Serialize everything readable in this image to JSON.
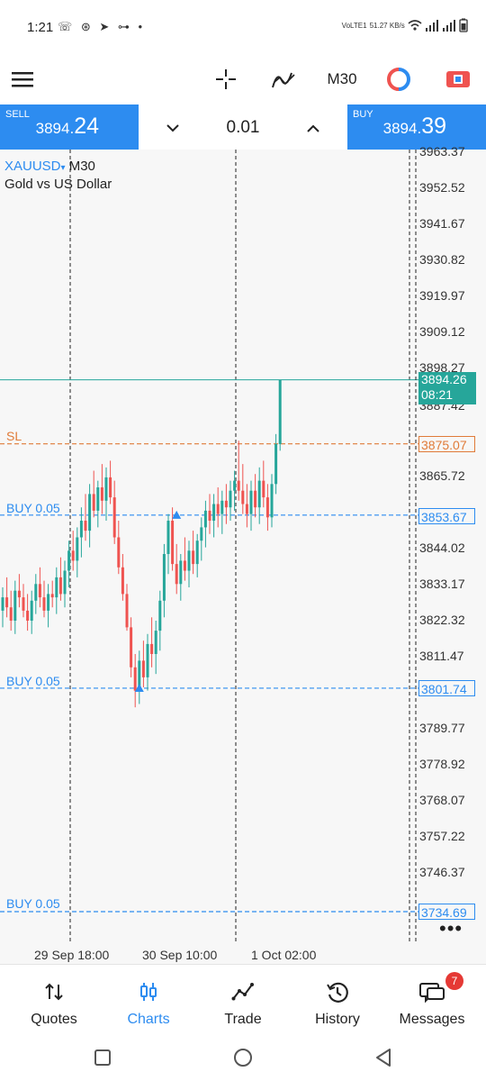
{
  "status": {
    "time": "1:21",
    "icons": "☏ ⊛ ➤ ⊶ •",
    "net_speed": "51.27 KB/s",
    "net_type": "VoLTE1"
  },
  "toolbar": {
    "timeframe": "M30",
    "icons": [
      "menu-icon",
      "crosshair-icon",
      "indicators-icon",
      "trade-circle-icon",
      "one-click-trading-icon"
    ]
  },
  "trade": {
    "sell_label": "SELL",
    "sell_price_main": "3894.",
    "sell_price_big": "24",
    "volume": "0.01",
    "buy_label": "BUY",
    "buy_price_main": "3894.",
    "buy_price_big": "39"
  },
  "chart": {
    "symbol": "XAUUSD",
    "symbol_marker": "▾",
    "timeframe": "M30",
    "description": "Gold vs US Dollar",
    "y_labels": [
      "3963.37",
      "3952.52",
      "3941.67",
      "3930.82",
      "3919.97",
      "3909.12",
      "3898.27",
      "3887.42",
      "3865.72",
      "3844.02",
      "3833.17",
      "3822.32",
      "3811.47",
      "3789.77",
      "3778.92",
      "3768.07",
      "3757.22",
      "3746.37"
    ],
    "x_labels": [
      "29 Sep 18:00",
      "30 Sep 10:00",
      "1 Oct 02:00"
    ],
    "current_price": "3894.26",
    "countdown": "08:21",
    "levels": [
      {
        "label": "SL",
        "price": "3875.07",
        "color": "#e07b39"
      },
      {
        "label": "BUY 0.05",
        "price": "3853.67",
        "color": "#2d8cf0"
      },
      {
        "label": "BUY 0.05",
        "price": "3801.74",
        "color": "#2d8cf0"
      },
      {
        "label": "BUY 0.05",
        "price": "3734.69",
        "color": "#2d8cf0"
      }
    ],
    "colors": {
      "bull": "#26a69a",
      "bear": "#ef5350",
      "buy_line": "#2d8cf0",
      "sl_line": "#e07b39"
    },
    "more": "•••"
  },
  "tabs": [
    {
      "label": "Quotes",
      "icon": "quotes-icon"
    },
    {
      "label": "Charts",
      "icon": "charts-icon",
      "active": true
    },
    {
      "label": "Trade",
      "icon": "trade-icon"
    },
    {
      "label": "History",
      "icon": "history-icon"
    },
    {
      "label": "Messages",
      "icon": "messages-icon",
      "badge": "7"
    }
  ],
  "chart_data": {
    "type": "candlestick",
    "title": "",
    "ylim": [
      3734.69,
      3963.37
    ],
    "x_labels": [
      "29 Sep 18:00",
      "30 Sep 10:00",
      "1 Oct 02:00"
    ],
    "series": [
      {
        "name": "XAUUSD",
        "candles": [
          [
            3825,
            3832,
            3820,
            3829
          ],
          [
            3829,
            3835,
            3823,
            3826
          ],
          [
            3826,
            3831,
            3819,
            3822
          ],
          [
            3822,
            3834,
            3818,
            3831
          ],
          [
            3831,
            3836,
            3826,
            3829
          ],
          [
            3829,
            3833,
            3823,
            3825
          ],
          [
            3825,
            3830,
            3819,
            3822
          ],
          [
            3822,
            3831,
            3818,
            3828
          ],
          [
            3828,
            3836,
            3824,
            3833
          ],
          [
            3833,
            3838,
            3826,
            3829
          ],
          [
            3829,
            3834,
            3823,
            3825
          ],
          [
            3825,
            3833,
            3820,
            3830
          ],
          [
            3830,
            3834,
            3826,
            3829
          ],
          [
            3829,
            3838,
            3824,
            3835
          ],
          [
            3835,
            3841,
            3828,
            3830
          ],
          [
            3830,
            3840,
            3826,
            3837
          ],
          [
            3837,
            3846,
            3832,
            3843
          ],
          [
            3843,
            3849,
            3837,
            3840
          ],
          [
            3840,
            3850,
            3835,
            3847
          ],
          [
            3847,
            3856,
            3841,
            3852
          ],
          [
            3852,
            3860,
            3846,
            3849
          ],
          [
            3849,
            3863,
            3844,
            3860
          ],
          [
            3860,
            3867,
            3853,
            3855
          ],
          [
            3855,
            3864,
            3850,
            3862
          ],
          [
            3862,
            3869,
            3854,
            3858
          ],
          [
            3858,
            3868,
            3852,
            3865
          ],
          [
            3865,
            3870,
            3857,
            3859
          ],
          [
            3859,
            3864,
            3845,
            3847
          ],
          [
            3847,
            3852,
            3836,
            3838
          ],
          [
            3838,
            3842,
            3828,
            3830
          ],
          [
            3830,
            3833,
            3819,
            3820
          ],
          [
            3820,
            3823,
            3805,
            3808
          ],
          [
            3808,
            3812,
            3796,
            3801
          ],
          [
            3801,
            3813,
            3797,
            3810
          ],
          [
            3810,
            3816,
            3802,
            3805
          ],
          [
            3805,
            3818,
            3801,
            3815
          ],
          [
            3815,
            3823,
            3808,
            3812
          ],
          [
            3812,
            3822,
            3806,
            3819
          ],
          [
            3819,
            3831,
            3813,
            3828
          ],
          [
            3828,
            3845,
            3823,
            3842
          ],
          [
            3842,
            3854,
            3836,
            3852
          ],
          [
            3852,
            3856,
            3837,
            3839
          ],
          [
            3839,
            3845,
            3830,
            3833
          ],
          [
            3833,
            3842,
            3828,
            3840
          ],
          [
            3840,
            3847,
            3834,
            3837
          ],
          [
            3837,
            3846,
            3832,
            3843
          ],
          [
            3843,
            3849,
            3836,
            3839
          ],
          [
            3839,
            3848,
            3835,
            3846
          ],
          [
            3846,
            3853,
            3840,
            3850
          ],
          [
            3850,
            3858,
            3844,
            3855
          ],
          [
            3855,
            3860,
            3848,
            3852
          ],
          [
            3852,
            3860,
            3847,
            3857
          ],
          [
            3857,
            3862,
            3850,
            3854
          ],
          [
            3854,
            3861,
            3848,
            3858
          ],
          [
            3858,
            3863,
            3851,
            3856
          ],
          [
            3856,
            3864,
            3852,
            3861
          ],
          [
            3861,
            3867,
            3855,
            3864
          ],
          [
            3864,
            3876,
            3858,
            3861
          ],
          [
            3861,
            3869,
            3854,
            3857
          ],
          [
            3857,
            3863,
            3850,
            3854
          ],
          [
            3854,
            3864,
            3849,
            3861
          ],
          [
            3861,
            3866,
            3853,
            3856
          ],
          [
            3856,
            3868,
            3851,
            3864
          ],
          [
            3864,
            3870,
            3856,
            3859
          ],
          [
            3859,
            3863,
            3849,
            3853
          ],
          [
            3853,
            3866,
            3850,
            3863
          ],
          [
            3863,
            3878,
            3860,
            3875
          ],
          [
            3875,
            3894.3,
            3873,
            3894.26
          ]
        ]
      }
    ]
  }
}
